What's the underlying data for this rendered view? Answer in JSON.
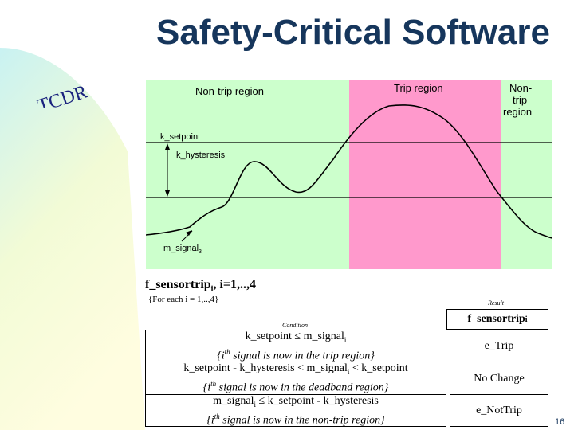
{
  "slide": {
    "title": "Safety-Critical Software",
    "logo_text": "TCDR",
    "page_number": "16"
  },
  "diagram": {
    "regions": {
      "left": "Non-trip region",
      "middle": "Trip region",
      "right_line1": "Non-",
      "right_line2": "trip",
      "right_line3": "region"
    },
    "labels": {
      "setpoint": "k_setpoint",
      "hysteresis": "k_hysteresis",
      "signal": "m_signal",
      "signal_subscript": "3"
    },
    "colors": {
      "non_trip": "#ccffcc",
      "trip": "#ff99cc"
    }
  },
  "function": {
    "name": "f_sensortrip",
    "name_sub": "i",
    "name_suffix": ", i=1,..,4",
    "note": "{For each i = 1,..,4}",
    "condition_label": "Condition",
    "result_label": "Result",
    "result_header": "f_sensortrip",
    "result_header_sub": "i"
  },
  "table": {
    "rows": [
      {
        "condition": "k_setpoint ≤ m_signal",
        "condition_sub": "i",
        "comment": "{i",
        "comment_sup": "th",
        "comment_rest": " signal is now in the trip region}",
        "result": "e_Trip"
      },
      {
        "condition": "k_setpoint - k_hysteresis < m_signal",
        "condition_sub": "i",
        "condition_end": " < k_setpoint",
        "comment": "{i",
        "comment_sup": "th",
        "comment_rest": " signal is now in the deadband region}",
        "result": "No Change"
      },
      {
        "condition": "m_signal",
        "condition_sub": "i",
        "condition_end": " ≤ k_setpoint - k_hysteresis",
        "comment": "{i",
        "comment_sup": "th",
        "comment_rest": " signal is now in the non-trip region}",
        "result": "e_NotTrip"
      }
    ]
  }
}
